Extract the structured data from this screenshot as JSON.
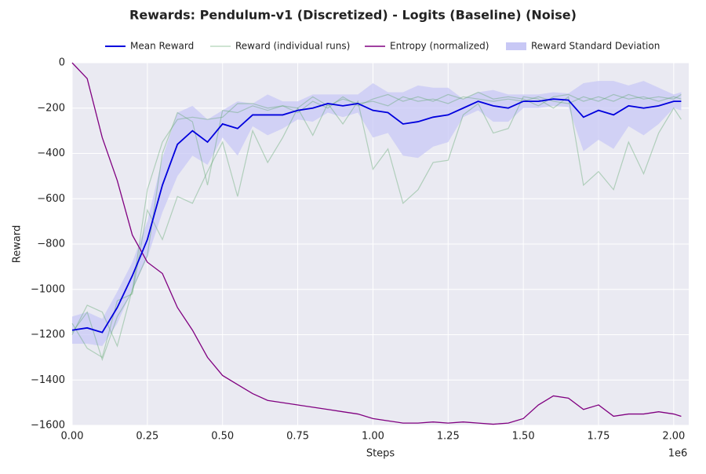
{
  "chart_data": {
    "type": "line",
    "title": "Rewards: Pendulum-v1 (Discretized) - Logits (Baseline) (Noise)",
    "x_label": "Steps",
    "y_label": "Reward",
    "x_offset_label": "1e6",
    "xlim": [
      0,
      2050000
    ],
    "ylim": [
      -1600,
      0
    ],
    "xticks": [
      {
        "value": 0,
        "label": "0.00"
      },
      {
        "value": 250000,
        "label": "0.25"
      },
      {
        "value": 500000,
        "label": "0.50"
      },
      {
        "value": 750000,
        "label": "0.75"
      },
      {
        "value": 1000000,
        "label": "1.00"
      },
      {
        "value": 1250000,
        "label": "1.25"
      },
      {
        "value": 1500000,
        "label": "1.50"
      },
      {
        "value": 1750000,
        "label": "1.75"
      },
      {
        "value": 2000000,
        "label": "2.00"
      }
    ],
    "yticks": [
      {
        "value": -1600,
        "label": "−1600"
      },
      {
        "value": -1400,
        "label": "−1400"
      },
      {
        "value": -1200,
        "label": "−1200"
      },
      {
        "value": -1000,
        "label": "−1000"
      },
      {
        "value": -800,
        "label": "−800"
      },
      {
        "value": -600,
        "label": "−600"
      },
      {
        "value": -400,
        "label": "−400"
      },
      {
        "value": -200,
        "label": "−200"
      },
      0
    ],
    "grid": true,
    "legend_position": "top",
    "x": [
      0,
      50000,
      100000,
      150000,
      200000,
      250000,
      300000,
      350000,
      400000,
      450000,
      500000,
      550000,
      600000,
      650000,
      700000,
      750000,
      800000,
      850000,
      900000,
      950000,
      1000000,
      1050000,
      1100000,
      1150000,
      1200000,
      1250000,
      1300000,
      1350000,
      1400000,
      1450000,
      1500000,
      1550000,
      1600000,
      1650000,
      1700000,
      1750000,
      1800000,
      1850000,
      1900000,
      1950000,
      2000000,
      2025000
    ],
    "series": [
      {
        "name": "Mean Reward",
        "color": "#0000dd",
        "values": [
          -1180,
          -1170,
          -1190,
          -1080,
          -940,
          -780,
          -540,
          -360,
          -300,
          -350,
          -270,
          -290,
          -230,
          -230,
          -230,
          -210,
          -200,
          -180,
          -190,
          -180,
          -210,
          -220,
          -270,
          -260,
          -240,
          -230,
          -200,
          -170,
          -190,
          -200,
          -170,
          -170,
          -160,
          -165,
          -240,
          -210,
          -230,
          -190,
          -200,
          -190,
          -170,
          -170
        ]
      },
      {
        "name": "Entropy (normalized)",
        "color": "#800080",
        "values": [
          0,
          -70,
          -330,
          -520,
          -760,
          -880,
          -930,
          -1080,
          -1180,
          -1300,
          -1380,
          -1420,
          -1460,
          -1490,
          -1500,
          -1510,
          -1520,
          -1530,
          -1540,
          -1550,
          -1570,
          -1580,
          -1590,
          -1590,
          -1585,
          -1590,
          -1585,
          -1590,
          -1595,
          -1590,
          -1570,
          -1510,
          -1470,
          -1480,
          -1530,
          -1510,
          -1560,
          -1550,
          -1550,
          -1540,
          -1550,
          -1560
        ]
      }
    ],
    "individual_runs": {
      "name": "Reward (individual runs)",
      "color": "#5aa469",
      "values": [
        [
          -1150,
          -1260,
          -1300,
          -1050,
          -1020,
          -650,
          -780,
          -590,
          -620,
          -480,
          -350,
          -590,
          -300,
          -440,
          -330,
          -200,
          -320,
          -180,
          -270,
          -170,
          -470,
          -380,
          -620,
          -560,
          -440,
          -430,
          -230,
          -180,
          -310,
          -290,
          -150,
          -160,
          -200,
          -150,
          -540,
          -480,
          -560,
          -350,
          -490,
          -310,
          -200,
          -250
        ],
        [
          -1200,
          -1070,
          -1100,
          -1250,
          -1000,
          -850,
          -400,
          -220,
          -260,
          -540,
          -210,
          -220,
          -190,
          -210,
          -190,
          -220,
          -170,
          -200,
          -150,
          -190,
          -160,
          -140,
          -170,
          -150,
          -170,
          -140,
          -160,
          -130,
          -160,
          -150,
          -160,
          -190,
          -150,
          -140,
          -170,
          -150,
          -170,
          -140,
          -160,
          -150,
          -160,
          -140
        ],
        [
          -1190,
          -1100,
          -1310,
          -1120,
          -1010,
          -560,
          -350,
          -250,
          -240,
          -250,
          -240,
          -180,
          -180,
          -200,
          -190,
          -200,
          -150,
          -190,
          -160,
          -180,
          -170,
          -190,
          -150,
          -170,
          -160,
          -180,
          -150,
          -160,
          -170,
          -160,
          -170,
          -150,
          -170,
          -180,
          -150,
          -170,
          -140,
          -160,
          -150,
          -170,
          -150,
          -160
        ]
      ]
    },
    "reward_std": {
      "name": "Reward Standard Deviation",
      "color": "#c8c8f5",
      "values": [
        60,
        70,
        60,
        70,
        60,
        80,
        120,
        140,
        110,
        100,
        60,
        120,
        50,
        90,
        60,
        40,
        60,
        40,
        50,
        40,
        120,
        90,
        140,
        160,
        130,
        120,
        40,
        40,
        70,
        60,
        30,
        30,
        30,
        30,
        150,
        130,
        150,
        90,
        120,
        80,
        30,
        40
      ]
    }
  }
}
